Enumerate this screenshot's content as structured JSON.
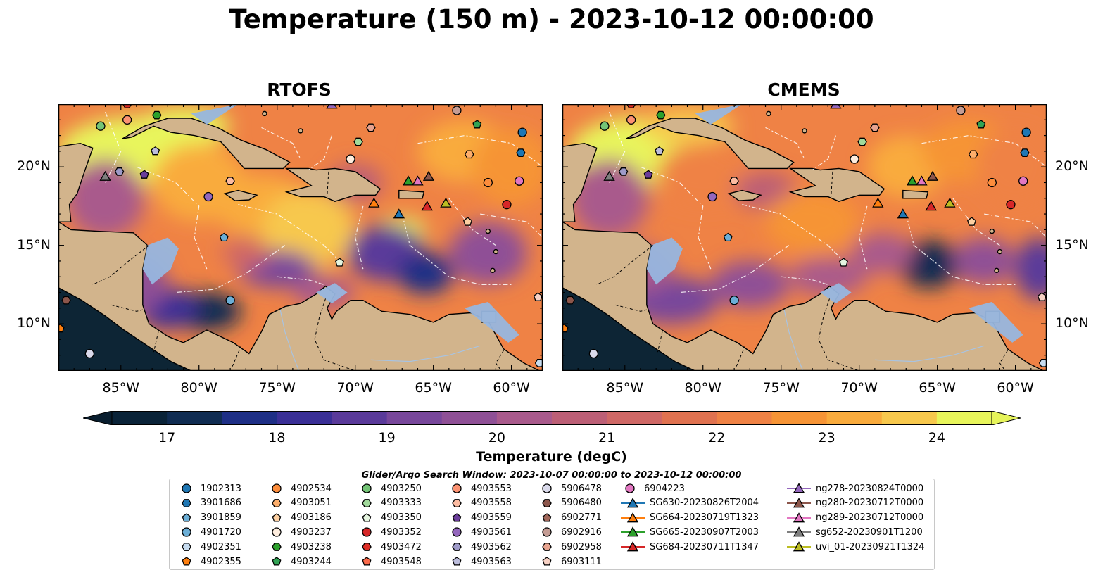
{
  "title": "Temperature (150 m) - 2023-10-12 00:00:00",
  "panels": [
    {
      "title": "RTOFS",
      "variant": "rtofs"
    },
    {
      "title": "CMEMS",
      "variant": "cmems"
    }
  ],
  "map_extent": {
    "lon": [
      -89,
      -58
    ],
    "lat": [
      7,
      24
    ]
  },
  "lat_ticks": [
    {
      "value": 20,
      "label": "20°N"
    },
    {
      "value": 15,
      "label": "15°N"
    },
    {
      "value": 10,
      "label": "10°N"
    }
  ],
  "lon_ticks": [
    {
      "value": -85,
      "label": "85°W"
    },
    {
      "value": -80,
      "label": "80°W"
    },
    {
      "value": -75,
      "label": "75°W"
    },
    {
      "value": -70,
      "label": "70°W"
    },
    {
      "value": -65,
      "label": "65°W"
    },
    {
      "value": -60,
      "label": "60°W"
    }
  ],
  "colorbar": {
    "label": "Temperature (degC)",
    "min": 16.5,
    "max": 24.5,
    "step": 0.5,
    "ticks": [
      "17",
      "18",
      "19",
      "20",
      "21",
      "22",
      "23",
      "24"
    ],
    "tick_values": [
      17,
      18,
      19,
      20,
      21,
      22,
      23,
      24
    ],
    "colors": [
      "#0a2338",
      "#102c52",
      "#1e2f86",
      "#3a2f96",
      "#5a3a9a",
      "#78479b",
      "#8f5096",
      "#a95a8c",
      "#bc5f76",
      "#cf6866",
      "#e07250",
      "#ef8245",
      "#f69436",
      "#f9ab3d",
      "#f7c84d",
      "#e8f55b"
    ],
    "extend_low": "#081d2e",
    "extend_high": "#e6f45a"
  },
  "map_colors": {
    "land": "#d2b48c",
    "shallow": "#97b6df",
    "deep_land": "#0d2535",
    "coast": "#000000",
    "river": "#a9c3e0"
  },
  "search_window": "Glider/Argo Search Window: 2023-10-07 00:00:00 to 2023-10-12 00:00:00",
  "markers": [
    {
      "id": "1902313",
      "shape": "circle",
      "color": "#1f77b4",
      "lon": -59.3,
      "lat": 22.2
    },
    {
      "id": "3901686",
      "shape": "hexagon",
      "color": "#1f77b4",
      "lon": -59.4,
      "lat": 20.9
    },
    {
      "id": "3901859",
      "shape": "pentagon",
      "color": "#6baed6",
      "lon": -78.4,
      "lat": 15.5
    },
    {
      "id": "4901720",
      "shape": "circle",
      "color": "#6baed6",
      "lon": -78.0,
      "lat": 11.5
    },
    {
      "id": "4902351",
      "shape": "hexagon",
      "color": "#c6dbef",
      "lon": -58.2,
      "lat": 7.5
    },
    {
      "id": "4902355",
      "shape": "pentagon",
      "color": "#ff7f0e",
      "lon": -88.9,
      "lat": 9.7
    },
    {
      "id": "4902534",
      "shape": "circle",
      "color": "#fd8d3c",
      "lon": -61.5,
      "lat": 19.0
    },
    {
      "id": "4903051",
      "shape": "hexagon",
      "color": "#fdae6b",
      "lon": -62.7,
      "lat": 20.8
    },
    {
      "id": "4903186",
      "shape": "pentagon",
      "color": "#fdd0a2",
      "lon": -62.8,
      "lat": 16.5
    },
    {
      "id": "4903237",
      "shape": "circle",
      "color": "#feedde",
      "lon": -70.3,
      "lat": 20.5
    },
    {
      "id": "4903238",
      "shape": "hexagon",
      "color": "#2ca02c",
      "lon": -82.7,
      "lat": 23.3
    },
    {
      "id": "4903244",
      "shape": "pentagon",
      "color": "#31a354",
      "lon": -62.2,
      "lat": 22.7
    },
    {
      "id": "4903250",
      "shape": "circle",
      "color": "#74c476",
      "lon": -86.3,
      "lat": 22.6
    },
    {
      "id": "4903333",
      "shape": "hexagon",
      "color": "#a1d99b",
      "lon": -69.8,
      "lat": 21.6
    },
    {
      "id": "4903350",
      "shape": "pentagon",
      "color": "#e5f5e0",
      "lon": -71.0,
      "lat": 13.9
    },
    {
      "id": "4903352",
      "shape": "circle",
      "color": "#d62728",
      "lon": -60.3,
      "lat": 17.6
    },
    {
      "id": "4903472",
      "shape": "hexagon",
      "color": "#de2d26",
      "lon": -84.6,
      "lat": 24.0
    },
    {
      "id": "4903548",
      "shape": "pentagon",
      "color": "#fb6a4a",
      "lon": -84.2,
      "lat": 24.2
    },
    {
      "id": "4903553",
      "shape": "circle",
      "color": "#fc9272",
      "lon": -84.6,
      "lat": 23.0
    },
    {
      "id": "4903558",
      "shape": "hexagon",
      "color": "#fcbba1",
      "lon": -78.0,
      "lat": 19.1
    },
    {
      "id": "4903559",
      "shape": "pentagon",
      "color": "#6a3d9a",
      "lon": -83.5,
      "lat": 19.5
    },
    {
      "id": "4903561",
      "shape": "circle",
      "color": "#9467bd",
      "lon": -79.4,
      "lat": 18.1
    },
    {
      "id": "4903562",
      "shape": "hexagon",
      "color": "#9e9ac8",
      "lon": -85.1,
      "lat": 19.7
    },
    {
      "id": "4903563",
      "shape": "pentagon",
      "color": "#bcbddc",
      "lon": -82.8,
      "lat": 21.0
    },
    {
      "id": "5906478",
      "shape": "circle",
      "color": "#dadaeb",
      "lon": -87.0,
      "lat": 8.1
    },
    {
      "id": "5906480",
      "shape": "hexagon",
      "color": "#8c564b",
      "lon": -88.5,
      "lat": 11.5
    },
    {
      "id": "6902771",
      "shape": "pentagon",
      "color": "#a0675a",
      "lon": -84.8,
      "lat": 24.5
    },
    {
      "id": "6902916",
      "shape": "circle",
      "color": "#c49c94",
      "lon": -63.5,
      "lat": 23.6
    },
    {
      "id": "6902958",
      "shape": "hexagon",
      "color": "#e7a38f",
      "lon": -69.0,
      "lat": 22.5
    },
    {
      "id": "6903111",
      "shape": "pentagon",
      "color": "#f7d1c4",
      "lon": -58.3,
      "lat": 11.7
    },
    {
      "id": "6904223",
      "shape": "circle",
      "color": "#e377c2",
      "lon": -59.5,
      "lat": 19.1
    },
    {
      "id": "SG630-20230826T2004",
      "shape": "triangle",
      "color": "#1f77b4",
      "lon": -67.2,
      "lat": 17.0
    },
    {
      "id": "SG664-20230719T1323",
      "shape": "triangle",
      "color": "#ff7f0e",
      "lon": -68.8,
      "lat": 17.7
    },
    {
      "id": "SG665-20230907T2003",
      "shape": "triangle",
      "color": "#2ca02c",
      "lon": -66.6,
      "lat": 19.1
    },
    {
      "id": "SG684-20230711T1347",
      "shape": "triangle",
      "color": "#d62728",
      "lon": -65.4,
      "lat": 17.5
    },
    {
      "id": "ng278-20230824T0000",
      "shape": "triangle",
      "color": "#9467bd",
      "lon": -71.5,
      "lat": 24.0
    },
    {
      "id": "ng280-20230712T0000",
      "shape": "triangle",
      "color": "#8c564b",
      "lon": -65.3,
      "lat": 19.4
    },
    {
      "id": "ng289-20230712T0000",
      "shape": "triangle",
      "color": "#e377c2",
      "lon": -66.0,
      "lat": 19.1
    },
    {
      "id": "sg652-20230901T1200",
      "shape": "triangle",
      "color": "#7f7f7f",
      "lon": -86.0,
      "lat": 19.4
    },
    {
      "id": "uvi_01-20230921T1324",
      "shape": "triangle",
      "color": "#bcbd22",
      "lon": -64.2,
      "lat": 17.7
    }
  ],
  "legend_columns": [
    [
      "1902313",
      "3901686",
      "3901859",
      "4901720",
      "4902351",
      "4902355"
    ],
    [
      "4902534",
      "4903051",
      "4903186",
      "4903237",
      "4903238",
      "4903244"
    ],
    [
      "4903250",
      "4903333",
      "4903350",
      "4903352",
      "4903472",
      "4903548"
    ],
    [
      "4903553",
      "4903558",
      "4903559",
      "4903561",
      "4903562",
      "4903563"
    ],
    [
      "5906478",
      "5906480",
      "6902771",
      "6902916",
      "6902958",
      "6903111"
    ],
    [
      "6904223",
      "SG630-20230826T2004",
      "SG664-20230719T1323",
      "SG665-20230907T2003",
      "SG684-20230711T1347"
    ],
    [
      "ng278-20230824T0000",
      "ng280-20230712T0000",
      "ng289-20230712T0000",
      "sg652-20230901T1200",
      "uvi_01-20230921T1324"
    ]
  ]
}
